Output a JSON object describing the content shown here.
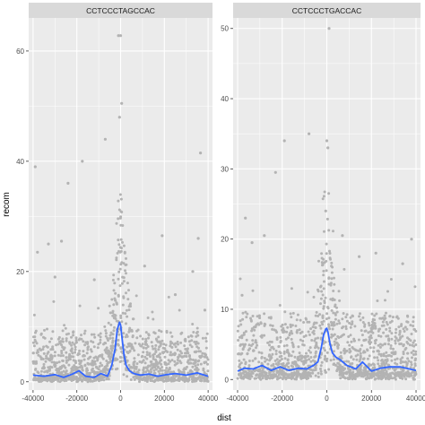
{
  "chart_data": {
    "type": "scatter",
    "xlabel": "dist",
    "ylabel": "recom",
    "grid": true,
    "legend": "none",
    "colors": {
      "panel_bg": "#ebebeb",
      "strip_bg": "#d9d9d9",
      "grid": "#ffffff",
      "points": "#b3b3b3",
      "smooth": "#3366ff"
    },
    "x_range": [
      -42000,
      42000
    ],
    "x_ticks": [
      -40000,
      -20000,
      0,
      20000,
      40000
    ],
    "x_tick_labels": [
      "-40000",
      "-20000",
      "0",
      "20000",
      "40000"
    ],
    "panels": [
      {
        "strip": "CCTCCCTAGCCAC",
        "y_range": [
          -1.5,
          66
        ],
        "y_ticks": [
          0,
          20,
          40,
          60
        ],
        "y_tick_labels": [
          "0",
          "20",
          "40",
          "60"
        ],
        "scatter_samples": [
          {
            "x": -1000,
            "y": 62.8
          },
          {
            "x": 0,
            "y": 62.8
          },
          {
            "x": 500,
            "y": 50.5
          },
          {
            "x": -500,
            "y": 48.0
          },
          {
            "x": -39000,
            "y": 39.0
          },
          {
            "x": -24000,
            "y": 36.0
          },
          {
            "x": -17500,
            "y": 40.0
          },
          {
            "x": -7000,
            "y": 44.0
          },
          {
            "x": 36500,
            "y": 41.5
          },
          {
            "x": -38000,
            "y": 23.5
          },
          {
            "x": -33000,
            "y": 25.0
          },
          {
            "x": -27000,
            "y": 25.5
          },
          {
            "x": 19000,
            "y": 26.5
          },
          {
            "x": 35500,
            "y": 26.0
          },
          {
            "x": 11000,
            "y": 21.0
          },
          {
            "x": -30000,
            "y": 19.0
          },
          {
            "x": 25000,
            "y": 15.8
          },
          {
            "x": -12000,
            "y": 18.5
          },
          {
            "x": 33000,
            "y": 20.0
          },
          {
            "x": 38500,
            "y": 13.0
          }
        ],
        "smooth": {
          "x": [
            -40000,
            -35000,
            -30000,
            -26000,
            -22000,
            -19000,
            -16000,
            -12000,
            -9000,
            -6000,
            -4000,
            -2500,
            -1500,
            -500,
            0,
            500,
            1500,
            2500,
            4000,
            6000,
            9000,
            13000,
            17000,
            21000,
            25000,
            30000,
            35000,
            40000
          ],
          "y": [
            1.2,
            1.0,
            1.3,
            0.8,
            1.4,
            2.0,
            1.0,
            0.8,
            1.5,
            1.0,
            3.0,
            6.0,
            9.5,
            10.8,
            10.3,
            8.5,
            5.0,
            3.0,
            2.0,
            1.5,
            1.2,
            1.4,
            1.0,
            1.3,
            1.5,
            1.2,
            1.6,
            1.0
          ]
        }
      },
      {
        "strip": "CCTCCCTGACCAC",
        "y_range": [
          -1.5,
          51.5
        ],
        "y_ticks": [
          0,
          10,
          20,
          30,
          40,
          50
        ],
        "y_tick_labels": [
          "0",
          "10",
          "20",
          "30",
          "40",
          "50"
        ],
        "scatter_samples": [
          {
            "x": 1000,
            "y": 50.0
          },
          {
            "x": -19000,
            "y": 34.0
          },
          {
            "x": -8000,
            "y": 35.0
          },
          {
            "x": 0,
            "y": 34.0
          },
          {
            "x": 500,
            "y": 33.0
          },
          {
            "x": -23000,
            "y": 29.5
          },
          {
            "x": -36500,
            "y": 23.0
          },
          {
            "x": -33500,
            "y": 19.5
          },
          {
            "x": -28000,
            "y": 20.5
          },
          {
            "x": 7000,
            "y": 20.5
          },
          {
            "x": 38000,
            "y": 20.0
          },
          {
            "x": 22000,
            "y": 18.0
          },
          {
            "x": -38000,
            "y": 12.0
          },
          {
            "x": 14500,
            "y": 17.5
          },
          {
            "x": -500,
            "y": 24.0
          },
          {
            "x": 34000,
            "y": 16.5
          }
        ],
        "smooth": {
          "x": [
            -40000,
            -37000,
            -33000,
            -29000,
            -25000,
            -21000,
            -17000,
            -13000,
            -9000,
            -6000,
            -4000,
            -2500,
            -1500,
            -500,
            0,
            500,
            1500,
            2500,
            4000,
            6000,
            9000,
            13000,
            16000,
            20000,
            24000,
            28000,
            33000,
            37000,
            40000
          ],
          "y": [
            1.2,
            1.6,
            1.5,
            2.0,
            1.3,
            1.8,
            1.3,
            1.6,
            1.5,
            2.0,
            2.5,
            4.5,
            6.3,
            7.2,
            7.3,
            6.8,
            5.0,
            3.8,
            3.2,
            2.8,
            2.0,
            1.5,
            2.5,
            1.2,
            1.6,
            1.8,
            1.8,
            1.5,
            1.3
          ]
        }
      }
    ]
  }
}
